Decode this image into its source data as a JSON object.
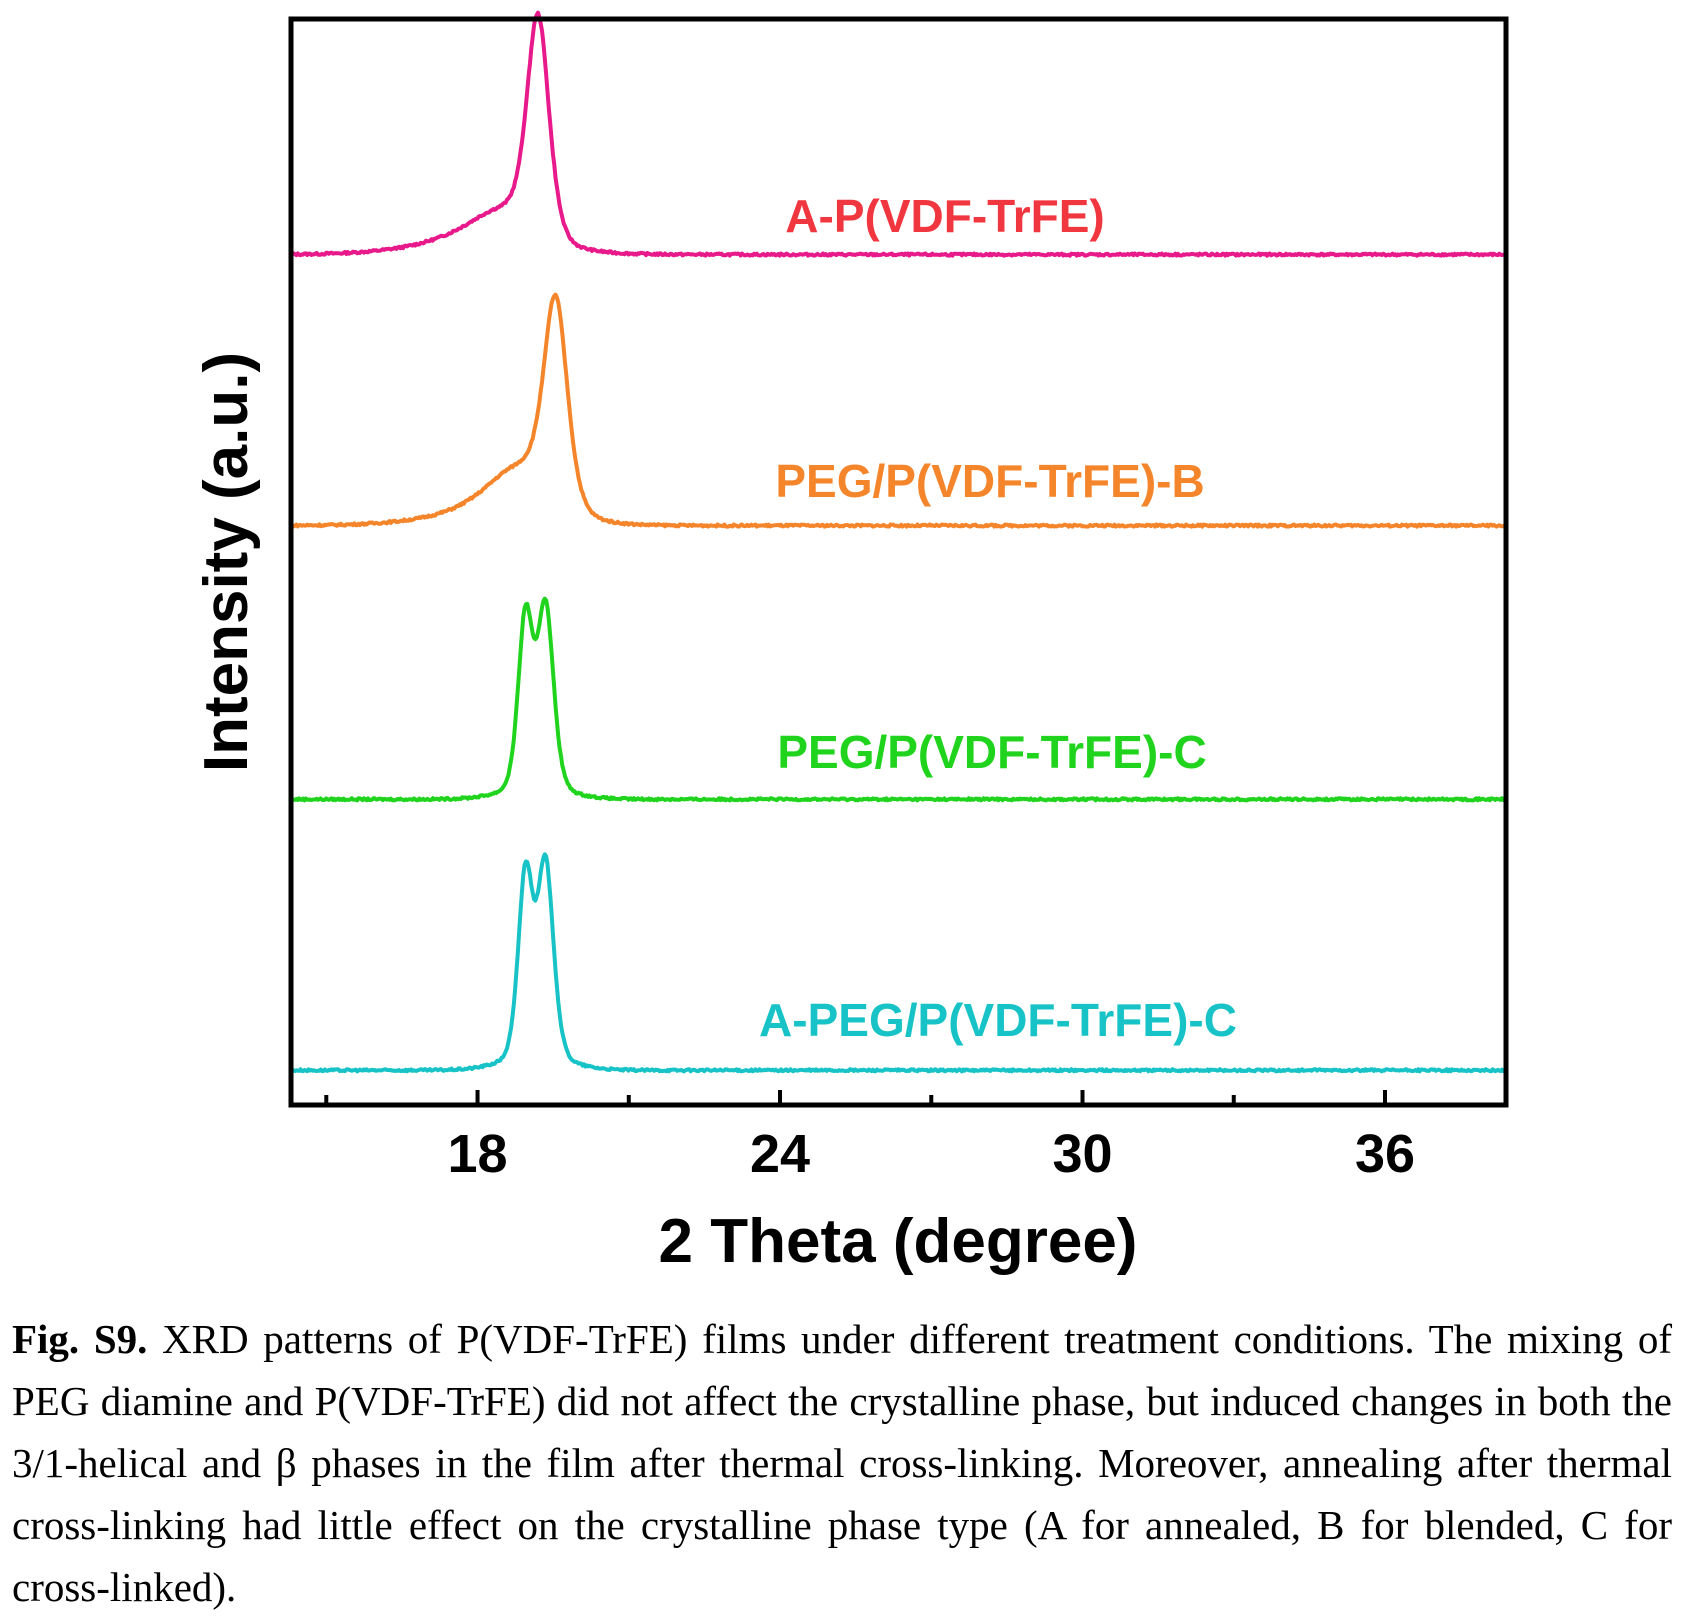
{
  "chart_data": {
    "type": "line",
    "xlabel": "2 Theta (degree)",
    "ylabel": "Intensity (a.u.)",
    "xlim": [
      14.3,
      38.4
    ],
    "xticks_major": [
      18,
      24,
      30,
      36
    ],
    "xticks_minor": [
      15,
      21,
      27,
      33
    ],
    "yticks": "none",
    "grid": false,
    "series": [
      {
        "name": "A-P(VDF-TrFE)",
        "color": "#e8198a",
        "offset": 3,
        "baseline": 0.02,
        "peaks": [
          {
            "center": 19.2,
            "height": 0.78,
            "width": 0.3
          },
          {
            "center": 18.6,
            "height": 0.12,
            "width": 0.9
          },
          {
            "center": 18.0,
            "height": 0.06,
            "width": 1.6
          }
        ]
      },
      {
        "name": "PEG/P(VDF-TrFE)-B",
        "color": "#f5852a",
        "offset": 2,
        "baseline": 0.02,
        "peaks": [
          {
            "center": 19.55,
            "height": 0.72,
            "width": 0.32
          },
          {
            "center": 18.9,
            "height": 0.18,
            "width": 0.9
          },
          {
            "center": 18.2,
            "height": 0.05,
            "width": 1.6
          }
        ]
      },
      {
        "name": "PEG/P(VDF-TrFE)-C",
        "color": "#20d41e",
        "offset": 1,
        "baseline": 0.01,
        "peaks": [
          {
            "center": 18.95,
            "height": 0.62,
            "width": 0.2
          },
          {
            "center": 19.35,
            "height": 0.66,
            "width": 0.22
          },
          {
            "center": 19.15,
            "height": 0.06,
            "width": 0.8
          }
        ]
      },
      {
        "name": "A-PEG/P(VDF-TrFE)-C",
        "color": "#17c3c6",
        "offset": 0,
        "baseline": 0.01,
        "peaks": [
          {
            "center": 18.95,
            "height": 0.66,
            "width": 0.2
          },
          {
            "center": 19.35,
            "height": 0.7,
            "width": 0.22
          },
          {
            "center": 19.15,
            "height": 0.07,
            "width": 0.8
          }
        ]
      }
    ]
  },
  "caption": {
    "label": "Fig. S9.",
    "text": "XRD patterns of P(VDF-TrFE) films under different treatment conditions. The mixing of PEG diamine and P(VDF-TrFE) did not affect the crystalline phase, but induced changes in both the 3/1-helical and β phases in the film after thermal cross-linking. Moreover, annealing after thermal cross-linking had little effect on the crystalline phase type (A for annealed, B for blended, C for cross-linked)."
  }
}
